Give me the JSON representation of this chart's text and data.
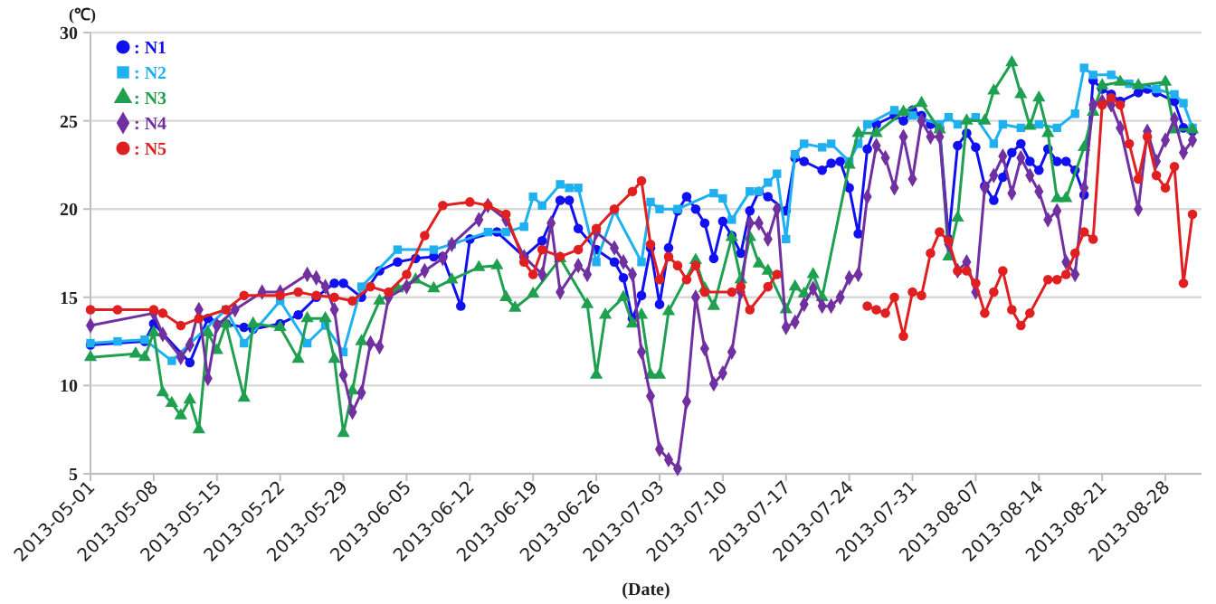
{
  "chart_data": {
    "type": "line",
    "xlabel": "(Date)",
    "ylabel": "(℃)",
    "xlim": [
      "2013-05-01",
      "2013-09-01"
    ],
    "xticks": [
      "2013-05-01",
      "2013-05-08",
      "2013-05-15",
      "2013-05-22",
      "2013-05-29",
      "2013-06-05",
      "2013-06-12",
      "2013-06-19",
      "2013-06-26",
      "2013-07-03",
      "2013-07-10",
      "2013-07-17",
      "2013-07-24",
      "2013-07-31",
      "2013-08-07",
      "2013-08-14",
      "2013-08-21",
      "2013-08-28"
    ],
    "ylim": [
      5,
      30
    ],
    "yticks": [
      5,
      10,
      15,
      20,
      25,
      30
    ],
    "grid": "y",
    "legend": "top left",
    "line_style": "solid",
    "series": [
      {
        "name": ": N1",
        "color": "#1010f0",
        "marker": "circle",
        "x": [
          "2013-05-01",
          "2013-05-07",
          "2013-05-08",
          "2013-05-12",
          "2013-05-14",
          "2013-05-16",
          "2013-05-18",
          "2013-05-19",
          "2013-05-22",
          "2013-05-24",
          "2013-05-26",
          "2013-05-28",
          "2013-05-29",
          "2013-05-31",
          "2013-06-02",
          "2013-06-04",
          "2013-06-06",
          "2013-06-08",
          "2013-06-09",
          "2013-06-11",
          "2013-06-12",
          "2013-06-15",
          "2013-06-18",
          "2013-06-20",
          "2013-06-22",
          "2013-06-23",
          "2013-06-24",
          "2013-06-26",
          "2013-06-28",
          "2013-06-29",
          "2013-06-30",
          "2013-07-01",
          "2013-07-02",
          "2013-07-03",
          "2013-07-04",
          "2013-07-05",
          "2013-07-06",
          "2013-07-07",
          "2013-07-08",
          "2013-07-09",
          "2013-07-10",
          "2013-07-11",
          "2013-07-12",
          "2013-07-13",
          "2013-07-14",
          "2013-07-15",
          "2013-07-17",
          "2013-07-18",
          "2013-07-19",
          "2013-07-21",
          "2013-07-22",
          "2013-07-23",
          "2013-07-24",
          "2013-07-25",
          "2013-07-26",
          "2013-07-27",
          "2013-07-29",
          "2013-07-30",
          "2013-07-31",
          "2013-08-01",
          "2013-08-02",
          "2013-08-03",
          "2013-08-04",
          "2013-08-05",
          "2013-08-06",
          "2013-08-07",
          "2013-08-08",
          "2013-08-09",
          "2013-08-10",
          "2013-08-11",
          "2013-08-12",
          "2013-08-13",
          "2013-08-14",
          "2013-08-15",
          "2013-08-16",
          "2013-08-17",
          "2013-08-18",
          "2013-08-19",
          "2013-08-20",
          "2013-08-21",
          "2013-08-22",
          "2013-08-23",
          "2013-08-25",
          "2013-08-26",
          "2013-08-27",
          "2013-08-29",
          "2013-08-30",
          "2013-08-31"
        ],
        "values": [
          12.3,
          12.5,
          13.5,
          11.3,
          13.8,
          13.5,
          13.3,
          13.2,
          13.5,
          14.0,
          15.0,
          15.8,
          15.8,
          15.0,
          16.5,
          17.0,
          17.2,
          17.3,
          17.3,
          14.5,
          18.3,
          18.7,
          17.3,
          18.2,
          20.5,
          20.5,
          18.9,
          17.7,
          17.0,
          16.1,
          13.8,
          15.1,
          17.8,
          14.6,
          17.8,
          19.9,
          20.7,
          20.0,
          19.2,
          17.2,
          19.3,
          18.5,
          17.5,
          19.9,
          21.0,
          20.7,
          19.9,
          22.9,
          22.7,
          22.2,
          22.6,
          22.7,
          21.2,
          18.6,
          23.4,
          24.8,
          25.3,
          25.0,
          25.6,
          25.3,
          24.8,
          24.6,
          18.3,
          23.6,
          24.3,
          23.5,
          21.3,
          20.5,
          21.8,
          23.2,
          23.7,
          22.7,
          22.2,
          23.4,
          22.7,
          22.7,
          22.2,
          20.8,
          27.3,
          26.8,
          26.5,
          26.1,
          26.6,
          26.8,
          26.6,
          26.1,
          24.6,
          24.4
        ]
      },
      {
        "name": ": N2",
        "color": "#1fb0f0",
        "marker": "square",
        "x": [
          "2013-05-01",
          "2013-05-04",
          "2013-05-07",
          "2013-05-10",
          "2013-05-16",
          "2013-05-18",
          "2013-05-22",
          "2013-05-25",
          "2013-05-27",
          "2013-05-29",
          "2013-05-31",
          "2013-06-04",
          "2013-06-08",
          "2013-06-10",
          "2013-06-14",
          "2013-06-16",
          "2013-06-18",
          "2013-06-19",
          "2013-06-20",
          "2013-06-22",
          "2013-06-23",
          "2013-06-24",
          "2013-06-26",
          "2013-06-28",
          "2013-07-01",
          "2013-07-02",
          "2013-07-03",
          "2013-07-05",
          "2013-07-09",
          "2013-07-10",
          "2013-07-11",
          "2013-07-13",
          "2013-07-14",
          "2013-07-15",
          "2013-07-16",
          "2013-07-17",
          "2013-07-18",
          "2013-07-19",
          "2013-07-21",
          "2013-07-22",
          "2013-07-24",
          "2013-07-25",
          "2013-07-26",
          "2013-07-29",
          "2013-07-31",
          "2013-08-03",
          "2013-08-04",
          "2013-08-05",
          "2013-08-07",
          "2013-08-09",
          "2013-08-10",
          "2013-08-12",
          "2013-08-14",
          "2013-08-16",
          "2013-08-18",
          "2013-08-19",
          "2013-08-20",
          "2013-08-22",
          "2013-08-24",
          "2013-08-27",
          "2013-08-29",
          "2013-08-30",
          "2013-08-31"
        ],
        "values": [
          12.4,
          12.5,
          12.6,
          11.4,
          14.3,
          12.4,
          14.8,
          12.4,
          13.4,
          11.9,
          15.6,
          17.7,
          17.7,
          18.0,
          18.7,
          18.7,
          19.0,
          20.7,
          20.2,
          21.4,
          21.2,
          21.2,
          17.0,
          19.9,
          17.0,
          20.4,
          20.0,
          20.0,
          20.9,
          20.6,
          19.4,
          21.0,
          21.0,
          21.5,
          22.0,
          18.3,
          23.1,
          23.7,
          23.5,
          23.7,
          22.7,
          23.7,
          24.8,
          25.6,
          25.3,
          24.8,
          25.2,
          24.8,
          25.2,
          23.7,
          24.8,
          24.6,
          24.8,
          24.6,
          25.4,
          28.0,
          27.6,
          27.6,
          27.1,
          26.8,
          26.5,
          26.0,
          24.6
        ]
      },
      {
        "name": ": N3",
        "color": "#1fa050",
        "marker": "triangle",
        "x": [
          "2013-05-01",
          "2013-05-06",
          "2013-05-07",
          "2013-05-08",
          "2013-05-09",
          "2013-05-10",
          "2013-05-11",
          "2013-05-12",
          "2013-05-13",
          "2013-05-14",
          "2013-05-15",
          "2013-05-16",
          "2013-05-18",
          "2013-05-19",
          "2013-05-22",
          "2013-05-24",
          "2013-05-25",
          "2013-05-27",
          "2013-05-28",
          "2013-05-29",
          "2013-05-30",
          "2013-05-31",
          "2013-06-02",
          "2013-06-04",
          "2013-06-06",
          "2013-06-08",
          "2013-06-10",
          "2013-06-13",
          "2013-06-15",
          "2013-06-16",
          "2013-06-17",
          "2013-06-19",
          "2013-06-22",
          "2013-06-25",
          "2013-06-26",
          "2013-06-27",
          "2013-06-29",
          "2013-06-30",
          "2013-07-01",
          "2013-07-02",
          "2013-07-03",
          "2013-07-04",
          "2013-07-07",
          "2013-07-08",
          "2013-07-09",
          "2013-07-11",
          "2013-07-12",
          "2013-07-13",
          "2013-07-14",
          "2013-07-15",
          "2013-07-17",
          "2013-07-18",
          "2013-07-19",
          "2013-07-20",
          "2013-07-21",
          "2013-07-24",
          "2013-07-25",
          "2013-07-27",
          "2013-07-30",
          "2013-08-01",
          "2013-08-03",
          "2013-08-04",
          "2013-08-05",
          "2013-08-06",
          "2013-08-08",
          "2013-08-09",
          "2013-08-11",
          "2013-08-12",
          "2013-08-13",
          "2013-08-14",
          "2013-08-15",
          "2013-08-16",
          "2013-08-17",
          "2013-08-19",
          "2013-08-20",
          "2013-08-21",
          "2013-08-23",
          "2013-08-25",
          "2013-08-28",
          "2013-08-29",
          "2013-08-31"
        ],
        "values": [
          11.6,
          11.8,
          11.6,
          13.0,
          9.6,
          9.0,
          8.3,
          9.2,
          7.5,
          13.0,
          12.0,
          13.5,
          9.3,
          13.5,
          13.3,
          11.5,
          13.8,
          13.8,
          11.5,
          7.3,
          9.7,
          12.5,
          14.8,
          15.5,
          16.0,
          15.5,
          16.0,
          16.7,
          16.8,
          15.0,
          14.4,
          15.2,
          17.2,
          14.6,
          10.6,
          14.0,
          15.0,
          13.5,
          14.0,
          10.6,
          10.6,
          14.2,
          17.1,
          15.5,
          14.5,
          18.4,
          16.0,
          18.4,
          16.9,
          16.5,
          14.3,
          15.6,
          15.2,
          16.3,
          15.0,
          22.5,
          24.3,
          24.3,
          25.5,
          26.0,
          24.5,
          17.3,
          19.5,
          25.0,
          25.0,
          26.7,
          28.3,
          26.5,
          24.7,
          26.3,
          24.3,
          20.6,
          20.6,
          23.5,
          25.5,
          27.0,
          27.2,
          27.0,
          27.2,
          24.5,
          24.5
        ]
      },
      {
        "name": ": N4",
        "color": "#7030a0",
        "marker": "diamond",
        "x": [
          "2013-05-01",
          "2013-05-08",
          "2013-05-09",
          "2013-05-11",
          "2013-05-12",
          "2013-05-13",
          "2013-05-14",
          "2013-05-15",
          "2013-05-17",
          "2013-05-20",
          "2013-05-22",
          "2013-05-25",
          "2013-05-26",
          "2013-05-27",
          "2013-05-28",
          "2013-05-29",
          "2013-05-30",
          "2013-05-31",
          "2013-06-01",
          "2013-06-02",
          "2013-06-03",
          "2013-06-05",
          "2013-06-07",
          "2013-06-09",
          "2013-06-10",
          "2013-06-13",
          "2013-06-14",
          "2013-06-16",
          "2013-06-18",
          "2013-06-20",
          "2013-06-21",
          "2013-06-22",
          "2013-06-24",
          "2013-06-25",
          "2013-06-26",
          "2013-06-28",
          "2013-06-29",
          "2013-06-30",
          "2013-07-01",
          "2013-07-02",
          "2013-07-03",
          "2013-07-04",
          "2013-07-05",
          "2013-07-06",
          "2013-07-07",
          "2013-07-08",
          "2013-07-09",
          "2013-07-10",
          "2013-07-11",
          "2013-07-12",
          "2013-07-13",
          "2013-07-14",
          "2013-07-15",
          "2013-07-16",
          "2013-07-17",
          "2013-07-18",
          "2013-07-19",
          "2013-07-20",
          "2013-07-21",
          "2013-07-22",
          "2013-07-23",
          "2013-07-24",
          "2013-07-25",
          "2013-07-26",
          "2013-07-27",
          "2013-07-28",
          "2013-07-29",
          "2013-07-30",
          "2013-07-31",
          "2013-08-01",
          "2013-08-02",
          "2013-08-03",
          "2013-08-04",
          "2013-08-05",
          "2013-08-06",
          "2013-08-07",
          "2013-08-08",
          "2013-08-09",
          "2013-08-10",
          "2013-08-11",
          "2013-08-12",
          "2013-08-13",
          "2013-08-14",
          "2013-08-15",
          "2013-08-16",
          "2013-08-17",
          "2013-08-18",
          "2013-08-19",
          "2013-08-20",
          "2013-08-21",
          "2013-08-22",
          "2013-08-23",
          "2013-08-25",
          "2013-08-26",
          "2013-08-27",
          "2013-08-28",
          "2013-08-29",
          "2013-08-30",
          "2013-08-31"
        ],
        "values": [
          13.4,
          14.1,
          12.9,
          11.6,
          12.3,
          14.3,
          10.4,
          13.4,
          14.3,
          15.3,
          15.3,
          16.3,
          16.1,
          15.6,
          14.3,
          10.6,
          8.5,
          9.6,
          12.4,
          12.2,
          15.0,
          15.6,
          16.5,
          17.2,
          18.0,
          19.4,
          20.2,
          19.4,
          17.3,
          16.3,
          19.2,
          15.3,
          16.8,
          16.3,
          18.7,
          17.8,
          17.0,
          16.3,
          11.9,
          9.4,
          6.4,
          5.8,
          5.3,
          9.1,
          15.0,
          12.1,
          10.1,
          10.7,
          11.9,
          15.3,
          19.2,
          19.2,
          18.3,
          20.0,
          13.3,
          13.6,
          14.6,
          15.5,
          14.5,
          14.5,
          15.0,
          16.1,
          16.3,
          20.7,
          23.6,
          22.9,
          21.2,
          24.1,
          21.7,
          25.0,
          24.1,
          24.1,
          18.0,
          16.5,
          17.0,
          15.3,
          21.2,
          21.9,
          23.0,
          20.9,
          22.9,
          21.9,
          21.0,
          19.4,
          19.9,
          17.0,
          16.3,
          21.2,
          25.9,
          26.1,
          25.9,
          24.6,
          20.0,
          24.4,
          22.7,
          23.9,
          25.1,
          23.2,
          23.9
        ]
      },
      {
        "name": ": N5",
        "color": "#e02020",
        "marker": "circle",
        "x": [
          "2013-05-01",
          "2013-05-04",
          "2013-05-08",
          "2013-05-09",
          "2013-05-11",
          "2013-05-13",
          "2013-05-16",
          "2013-05-18",
          "2013-05-22",
          "2013-05-24",
          "2013-05-26",
          "2013-05-28",
          "2013-05-30",
          "2013-06-01",
          "2013-06-03",
          "2013-06-05",
          "2013-06-07",
          "2013-06-09",
          "2013-06-12",
          "2013-06-14",
          "2013-06-16",
          "2013-06-18",
          "2013-06-19",
          "2013-06-20",
          "2013-06-22",
          "2013-06-24",
          "2013-06-26",
          "2013-06-28",
          "2013-06-30",
          "2013-07-01",
          "2013-07-02",
          "2013-07-03",
          "2013-07-04",
          "2013-07-05",
          "2013-07-06",
          "2013-07-07",
          "2013-07-08",
          "2013-07-11",
          "2013-07-12",
          "2013-07-13",
          "2013-07-15",
          "2013-07-16",
          "2013-07-20",
          "2013-07-26",
          "2013-07-27",
          "2013-07-28",
          "2013-07-29",
          "2013-07-30",
          "2013-07-31",
          "2013-08-01",
          "2013-08-02",
          "2013-08-03",
          "2013-08-04",
          "2013-08-05",
          "2013-08-06",
          "2013-08-07",
          "2013-08-08",
          "2013-08-09",
          "2013-08-10",
          "2013-08-11",
          "2013-08-12",
          "2013-08-13",
          "2013-08-15",
          "2013-08-16",
          "2013-08-17",
          "2013-08-18",
          "2013-08-19",
          "2013-08-20",
          "2013-08-21",
          "2013-08-22",
          "2013-08-23",
          "2013-08-24",
          "2013-08-25",
          "2013-08-26",
          "2013-08-27",
          "2013-08-28",
          "2013-08-29",
          "2013-08-30",
          "2013-08-31"
        ],
        "values": [
          14.3,
          14.3,
          14.3,
          14.1,
          13.4,
          13.8,
          14.3,
          15.1,
          15.1,
          15.3,
          15.1,
          15.0,
          14.8,
          15.6,
          15.3,
          16.3,
          18.5,
          20.2,
          20.4,
          20.2,
          19.7,
          17.0,
          16.3,
          17.7,
          17.3,
          17.7,
          18.9,
          20.0,
          21.0,
          21.6,
          18.0,
          16.0,
          17.3,
          16.8,
          16.0,
          16.8,
          15.3,
          15.3,
          15.6,
          14.3,
          15.6,
          16.3,
          null,
          14.5,
          14.3,
          14.1,
          15.0,
          12.8,
          15.3,
          15.1,
          17.5,
          18.7,
          18.2,
          16.5,
          16.5,
          15.8,
          14.1,
          15.3,
          16.5,
          14.3,
          13.4,
          14.1,
          16.0,
          16.0,
          16.3,
          17.5,
          18.7,
          18.3,
          25.9,
          26.3,
          25.9,
          23.7,
          21.7,
          24.1,
          21.9,
          21.2,
          22.4,
          15.8,
          19.7
        ]
      }
    ]
  }
}
